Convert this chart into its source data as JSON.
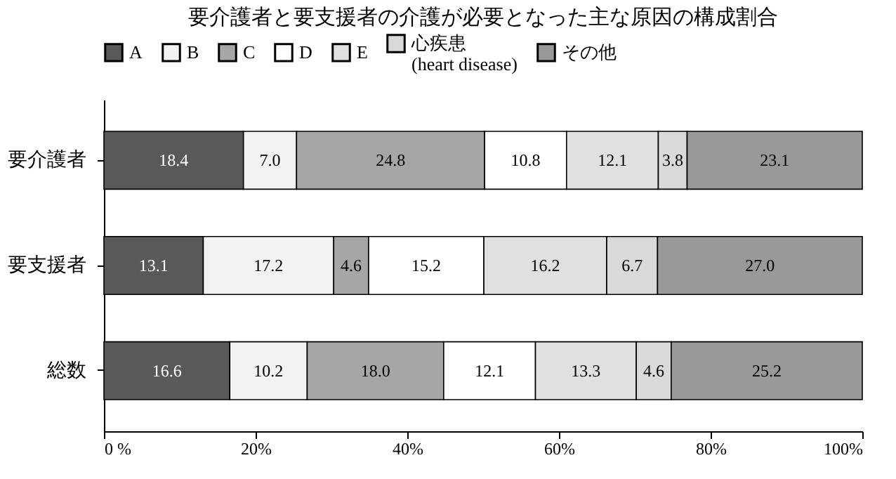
{
  "chart_data": {
    "type": "bar",
    "orientation": "horizontal",
    "stacked": true,
    "title": "要介護者と要支援者の介護が必要となった主な原因の構成割合",
    "categories": [
      "要介護者",
      "要支援者",
      "総数"
    ],
    "series": [
      {
        "name": "A",
        "color": "#595959",
        "values": [
          18.4,
          13.1,
          16.6
        ],
        "value_labels": [
          "18.4",
          "13.1",
          "16.6"
        ]
      },
      {
        "name": "B",
        "color": "#f2f2f2",
        "values": [
          7.0,
          17.2,
          10.2
        ],
        "value_labels": [
          "7.0",
          "17.2",
          "10.2"
        ]
      },
      {
        "name": "C",
        "color": "#a6a6a6",
        "values": [
          24.8,
          4.6,
          18.0
        ],
        "value_labels": [
          "24.8",
          "4.6",
          "18.0"
        ]
      },
      {
        "name": "D",
        "color": "#ffffff",
        "values": [
          10.8,
          15.2,
          12.1
        ],
        "value_labels": [
          "10.8",
          "15.2",
          "12.1"
        ]
      },
      {
        "name": "E",
        "color": "#e0e0e0",
        "values": [
          12.1,
          16.2,
          13.3
        ],
        "value_labels": [
          "12.1",
          "16.2",
          "13.3"
        ]
      },
      {
        "name": "心疾患\n(heart disease)",
        "color": "#d9d9d9",
        "values": [
          3.8,
          6.7,
          4.6
        ],
        "value_labels": [
          "3.8",
          "6.7",
          "4.6"
        ]
      },
      {
        "name": "その他",
        "color": "#999999",
        "values": [
          23.1,
          27.0,
          25.2
        ],
        "value_labels": [
          "23.1",
          "27.0",
          "25.2"
        ]
      }
    ],
    "xlim": [
      0,
      100
    ],
    "xticks": [
      {
        "value": 0,
        "label": "0 %"
      },
      {
        "value": 20,
        "label": "20%"
      },
      {
        "value": 40,
        "label": "40%"
      },
      {
        "value": 60,
        "label": "60%"
      },
      {
        "value": 80,
        "label": "80%"
      },
      {
        "value": 100,
        "label": "100%"
      }
    ],
    "legend": "top",
    "grid": false
  }
}
